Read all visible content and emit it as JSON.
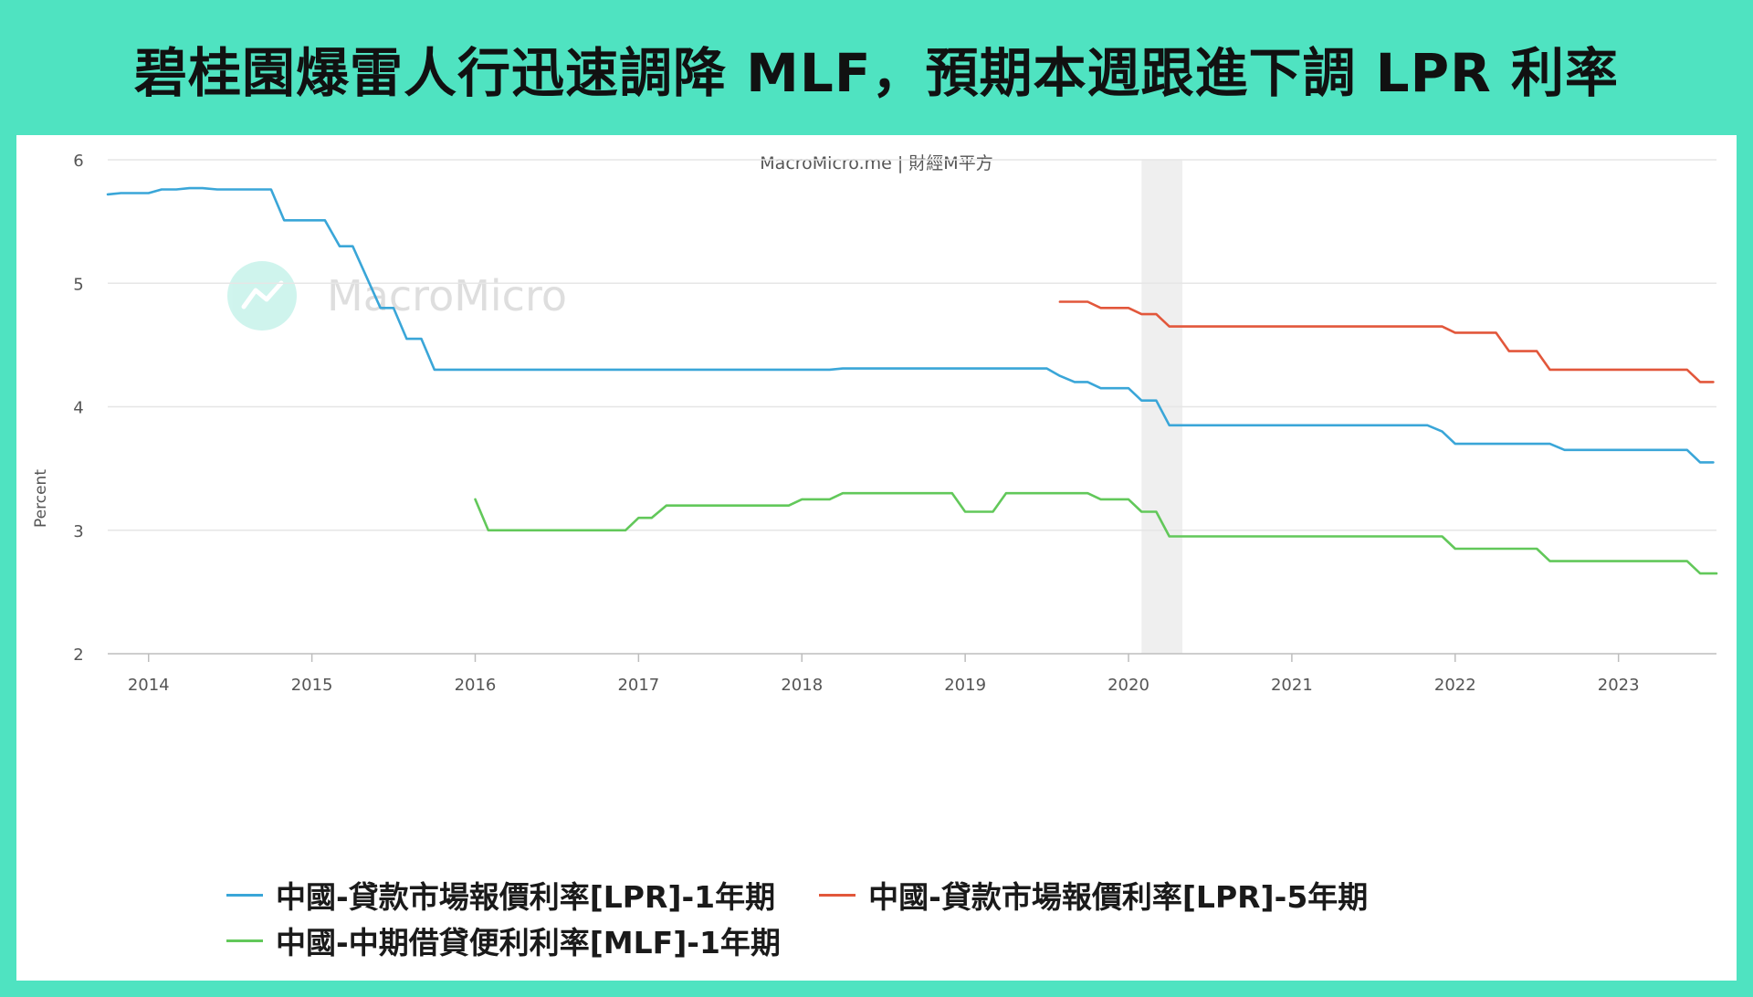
{
  "title": "碧桂園爆雷人行迅速調降 MLF，預期本週跟進下調 LPR 利率",
  "chart_data": {
    "type": "line",
    "source": "MacroMicro.me | 財經M平方",
    "watermark": "MacroMicro",
    "ylabel": "Percent",
    "ylim": [
      2,
      6
    ],
    "yticks": [
      "2",
      "3",
      "4",
      "5",
      "6"
    ],
    "xlim": [
      2013.75,
      2023.6
    ],
    "xticks": [
      "2014",
      "2015",
      "2016",
      "2017",
      "2018",
      "2019",
      "2020",
      "2021",
      "2022",
      "2023"
    ],
    "shaded_region": [
      2020.08,
      2020.33
    ],
    "grid": true,
    "legend_position": "bottom",
    "series": [
      {
        "name": "中國-貸款市場報價利率[LPR]-1年期",
        "color": "#3aa6d8",
        "points": [
          [
            2013.75,
            5.72
          ],
          [
            2013.83,
            5.73
          ],
          [
            2014.0,
            5.73
          ],
          [
            2014.08,
            5.76
          ],
          [
            2014.17,
            5.76
          ],
          [
            2014.25,
            5.77
          ],
          [
            2014.33,
            5.77
          ],
          [
            2014.42,
            5.76
          ],
          [
            2014.75,
            5.76
          ],
          [
            2014.83,
            5.51
          ],
          [
            2015.08,
            5.51
          ],
          [
            2015.17,
            5.3
          ],
          [
            2015.25,
            5.3
          ],
          [
            2015.42,
            4.8
          ],
          [
            2015.5,
            4.8
          ],
          [
            2015.58,
            4.55
          ],
          [
            2015.67,
            4.55
          ],
          [
            2015.75,
            4.3
          ],
          [
            2018.17,
            4.3
          ],
          [
            2018.25,
            4.31
          ],
          [
            2019.5,
            4.31
          ],
          [
            2019.58,
            4.25
          ],
          [
            2019.67,
            4.2
          ],
          [
            2019.75,
            4.2
          ],
          [
            2019.83,
            4.15
          ],
          [
            2020.0,
            4.15
          ],
          [
            2020.08,
            4.05
          ],
          [
            2020.17,
            4.05
          ],
          [
            2020.25,
            3.85
          ],
          [
            2021.83,
            3.85
          ],
          [
            2021.92,
            3.8
          ],
          [
            2022.0,
            3.7
          ],
          [
            2022.58,
            3.7
          ],
          [
            2022.67,
            3.65
          ],
          [
            2023.42,
            3.65
          ],
          [
            2023.5,
            3.55
          ],
          [
            2023.58,
            3.55
          ]
        ]
      },
      {
        "name": "中國-貸款市場報價利率[LPR]-5年期",
        "color": "#e2573b",
        "points": [
          [
            2019.58,
            4.85
          ],
          [
            2019.75,
            4.85
          ],
          [
            2019.83,
            4.8
          ],
          [
            2020.0,
            4.8
          ],
          [
            2020.08,
            4.75
          ],
          [
            2020.17,
            4.75
          ],
          [
            2020.25,
            4.65
          ],
          [
            2021.92,
            4.65
          ],
          [
            2022.0,
            4.6
          ],
          [
            2022.25,
            4.6
          ],
          [
            2022.33,
            4.45
          ],
          [
            2022.5,
            4.45
          ],
          [
            2022.58,
            4.3
          ],
          [
            2023.42,
            4.3
          ],
          [
            2023.5,
            4.2
          ],
          [
            2023.58,
            4.2
          ]
        ]
      },
      {
        "name": "中國-中期借貸便利利率[MLF]-1年期",
        "color": "#62c85a",
        "points": [
          [
            2016.0,
            3.25
          ],
          [
            2016.08,
            3.0
          ],
          [
            2016.92,
            3.0
          ],
          [
            2017.0,
            3.1
          ],
          [
            2017.08,
            3.1
          ],
          [
            2017.17,
            3.2
          ],
          [
            2017.92,
            3.2
          ],
          [
            2018.0,
            3.25
          ],
          [
            2018.17,
            3.25
          ],
          [
            2018.25,
            3.3
          ],
          [
            2018.92,
            3.3
          ],
          [
            2019.0,
            3.15
          ],
          [
            2019.17,
            3.15
          ],
          [
            2019.25,
            3.3
          ],
          [
            2019.75,
            3.3
          ],
          [
            2019.83,
            3.25
          ],
          [
            2020.0,
            3.25
          ],
          [
            2020.08,
            3.15
          ],
          [
            2020.17,
            3.15
          ],
          [
            2020.25,
            2.95
          ],
          [
            2021.92,
            2.95
          ],
          [
            2022.0,
            2.85
          ],
          [
            2022.5,
            2.85
          ],
          [
            2022.58,
            2.75
          ],
          [
            2023.42,
            2.75
          ],
          [
            2023.5,
            2.65
          ],
          [
            2023.6,
            2.65
          ]
        ]
      }
    ]
  }
}
